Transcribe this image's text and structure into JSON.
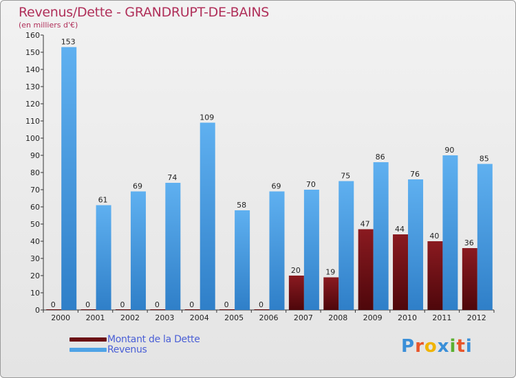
{
  "header": {
    "title": "Revenus/Dette - GRANDRUPT-DE-BAINS",
    "subtitle": "(en milliers d'€)"
  },
  "colors": {
    "dette": "#6b0f14",
    "revenus": "#4fa3e6",
    "title": "#b0305a",
    "legend_text": "#4a5fd6"
  },
  "legend": {
    "items": [
      {
        "label": "Montant de la Dette",
        "color": "#6b0f14"
      },
      {
        "label": "Revenus",
        "color": "#4fa3e6"
      }
    ]
  },
  "logo": {
    "letters": [
      "P",
      "r",
      "o",
      "x",
      "i",
      "t",
      "i"
    ],
    "colors": [
      "#3a8fd8",
      "#e8552a",
      "#f0b400",
      "#3a8fd8",
      "#5bb030",
      "#e8552a",
      "#3a8fd8"
    ]
  },
  "chart_data": {
    "type": "bar",
    "title": "Revenus/Dette - GRANDRUPT-DE-BAINS",
    "subtitle": "(en milliers d'€)",
    "categories": [
      "2000",
      "2001",
      "2002",
      "2003",
      "2004",
      "2005",
      "2006",
      "2007",
      "2008",
      "2009",
      "2010",
      "2011",
      "2012"
    ],
    "series": [
      {
        "name": "Montant de la Dette",
        "values": [
          0,
          0,
          0,
          0,
          0,
          0,
          0,
          20,
          19,
          47,
          44,
          40,
          36
        ]
      },
      {
        "name": "Revenus",
        "values": [
          153,
          61,
          69,
          74,
          109,
          58,
          69,
          70,
          75,
          86,
          76,
          90,
          85
        ]
      }
    ],
    "ylim": [
      0,
      160
    ],
    "yticks": [
      0,
      10,
      20,
      30,
      40,
      50,
      60,
      70,
      80,
      90,
      100,
      110,
      120,
      130,
      140,
      150,
      160
    ],
    "xlabel": "",
    "ylabel": "",
    "legend_position": "bottom-left",
    "grid": false
  }
}
